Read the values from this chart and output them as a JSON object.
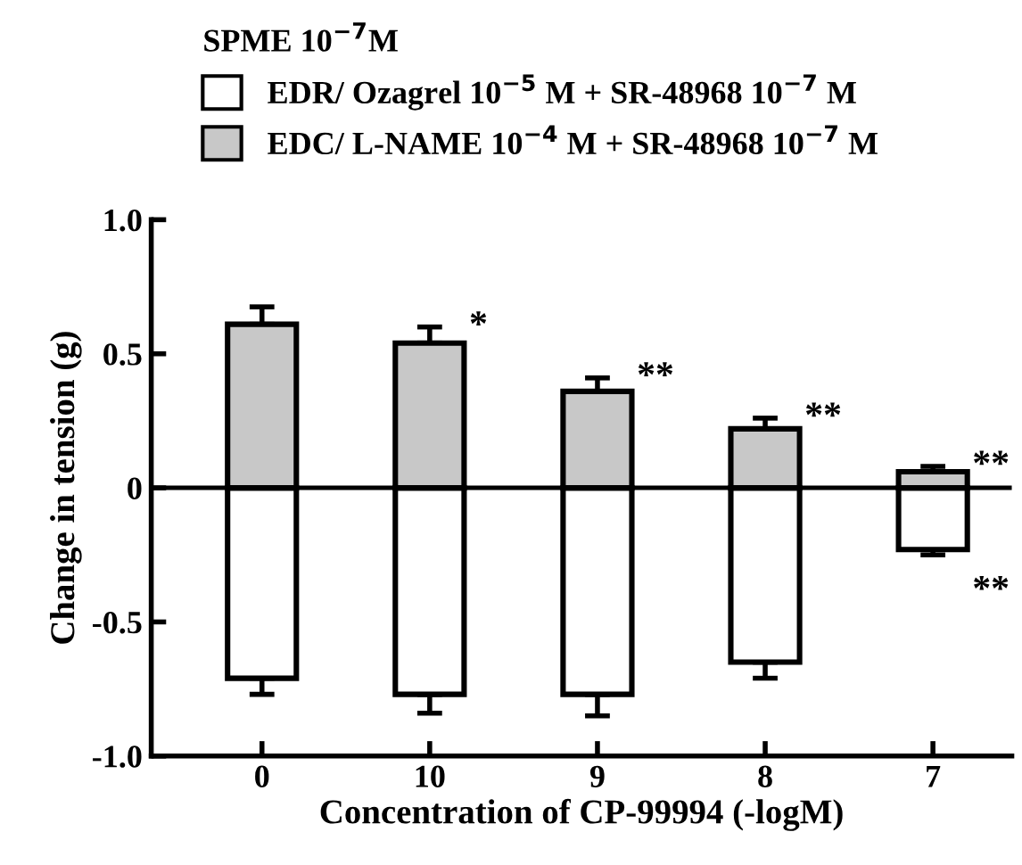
{
  "chart_data": {
    "type": "bar",
    "xlabel": "Concentration of CP-99994 (-logM)",
    "ylabel": "Change in tension (g)",
    "legend_title": "SPME 10$^{−7}$M",
    "categories": [
      "0",
      "10",
      "9",
      "8",
      "7"
    ],
    "series": [
      {
        "name": "EDR/ Ozagrel 10$^{−5}$ M + SR-48968 10$^{−7}$ M",
        "color": "#ffffff",
        "values": [
          -0.71,
          -0.77,
          -0.77,
          -0.65,
          -0.23
        ],
        "errors": [
          [
            -0.77,
            -0.71
          ],
          [
            -0.84,
            -0.77
          ],
          [
            -0.85,
            -0.77
          ],
          [
            -0.71,
            -0.65
          ],
          [
            -0.25,
            -0.23
          ]
        ]
      },
      {
        "name": "EDC/ L-NAME 10$^{−4}$ M + SR-48968 10$^{−7}$ M",
        "color": "#c8c8c8",
        "values": [
          0.61,
          0.54,
          0.36,
          0.22,
          0.06
        ],
        "errors": [
          [
            0.61,
            0.675
          ],
          [
            0.54,
            0.6
          ],
          [
            0.36,
            0.41
          ],
          [
            0.22,
            0.26
          ],
          [
            0.06,
            0.08
          ]
        ]
      }
    ],
    "ylim": [
      -1.0,
      1.0
    ],
    "yticks": [
      {
        "value": 1.0,
        "label": "1.0"
      },
      {
        "value": 0.5,
        "label": "0.5"
      },
      0,
      {
        "value": -0.5,
        "label": "-0.5"
      },
      {
        "value": -1.0,
        "label": "-1.0"
      }
    ],
    "ref_lines": [
      {
        "axis": "y",
        "value": 0,
        "label": null,
        "color": "#000000"
      }
    ],
    "annotations": [
      {
        "text": "*",
        "x": "10",
        "y": 0.6
      },
      {
        "text": "**",
        "x": "9",
        "y": 0.41
      },
      {
        "text": "**",
        "x": "8",
        "y": 0.26
      },
      {
        "text": "**",
        "x": "7",
        "y": 0.08
      },
      {
        "text": "**",
        "x": "7",
        "y": -0.25
      }
    ],
    "stacked": true,
    "grid": false,
    "legend": "top"
  }
}
